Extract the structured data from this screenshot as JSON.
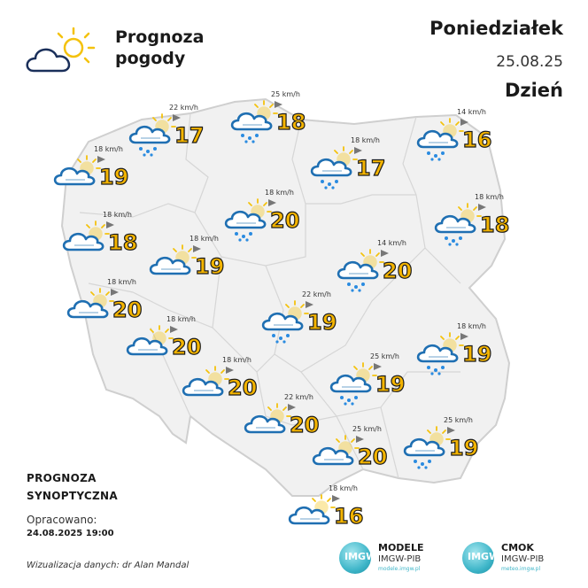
{
  "header": {
    "title_line1": "Prognoza",
    "title_line2": "pogody",
    "day": "Poniedziałek",
    "date": "25.08.25",
    "period": "Dzień"
  },
  "stations": [
    {
      "temp": "17",
      "wind": "22 km/h",
      "icon": "partly-cloudy-rain-icon"
    },
    {
      "temp": "18",
      "wind": "25 km/h",
      "icon": "partly-cloudy-rain-icon"
    },
    {
      "temp": "16",
      "wind": "14 km/h",
      "icon": "partly-cloudy-rain-icon"
    },
    {
      "temp": "19",
      "wind": "18 km/h",
      "icon": "partly-cloudy-icon"
    },
    {
      "temp": "17",
      "wind": "18 km/h",
      "icon": "partly-cloudy-rain-icon"
    },
    {
      "temp": "20",
      "wind": "18 km/h",
      "icon": "partly-cloudy-rain-icon"
    },
    {
      "temp": "18",
      "wind": "18 km/h",
      "icon": "partly-cloudy-icon"
    },
    {
      "temp": "18",
      "wind": "18 km/h",
      "icon": "partly-cloudy-rain-icon"
    },
    {
      "temp": "19",
      "wind": "18 km/h",
      "icon": "partly-cloudy-icon"
    },
    {
      "temp": "20",
      "wind": "14 km/h",
      "icon": "partly-cloudy-rain-icon"
    },
    {
      "temp": "20",
      "wind": "18 km/h",
      "icon": "partly-cloudy-icon"
    },
    {
      "temp": "19",
      "wind": "22 km/h",
      "icon": "partly-cloudy-rain-icon"
    },
    {
      "temp": "20",
      "wind": "18 km/h",
      "icon": "partly-cloudy-icon"
    },
    {
      "temp": "19",
      "wind": "18 km/h",
      "icon": "partly-cloudy-rain-icon"
    },
    {
      "temp": "20",
      "wind": "18 km/h",
      "icon": "partly-cloudy-icon"
    },
    {
      "temp": "19",
      "wind": "25 km/h",
      "icon": "partly-cloudy-rain-icon"
    },
    {
      "temp": "20",
      "wind": "22 km/h",
      "icon": "partly-cloudy-icon"
    },
    {
      "temp": "20",
      "wind": "25 km/h",
      "icon": "partly-cloudy-icon"
    },
    {
      "temp": "19",
      "wind": "25 km/h",
      "icon": "partly-cloudy-rain-icon"
    },
    {
      "temp": "16",
      "wind": "18 km/h",
      "icon": "partly-cloudy-icon"
    }
  ],
  "footer": {
    "synoptic_line1": "PROGNOZA",
    "synoptic_line2": "SYNOPTYCZNA",
    "prepared_label": "Opracowano:",
    "prepared_date": "24.08.2025 19:00",
    "visualization": "Wizualizacja danych: dr Alan Mandal",
    "brand1_name": "MODELE",
    "brand1_sub": "IMGW-PIB",
    "brand1_url": "modele.imgw.pl",
    "brand2_name": "CMOK",
    "brand2_sub": "IMGW-PIB",
    "brand2_url": "meteo.imgw.pl",
    "badge_text": "IMGW"
  },
  "colors": {
    "temp_fill": "#f4b400",
    "cloud_stroke": "#1f6fb2",
    "sun": "#f4c20d",
    "rain": "#2a8be0",
    "map_fill": "#f1f1f1"
  }
}
